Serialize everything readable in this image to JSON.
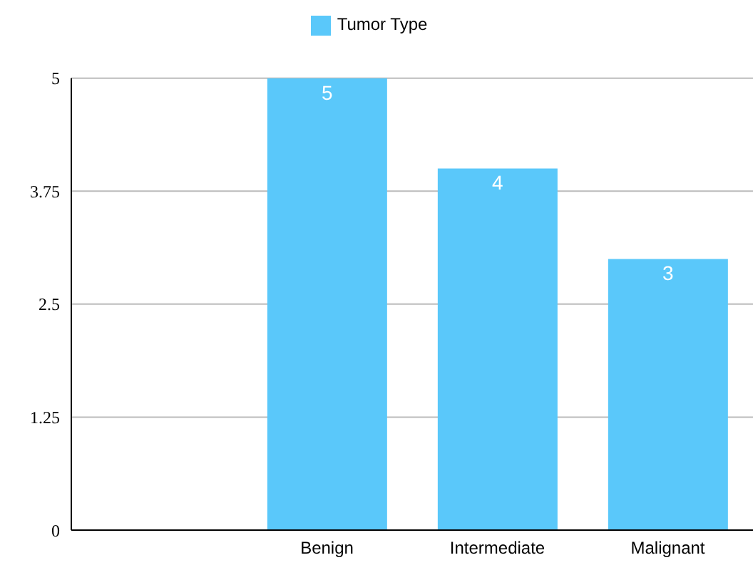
{
  "chart_data": {
    "type": "bar",
    "categories": [
      null,
      "Benign",
      "Intermediate",
      "Malignant"
    ],
    "series": [
      {
        "name": "Tumor Type",
        "color": "#5ac8fa",
        "values": [
          null,
          5,
          4,
          3
        ]
      }
    ],
    "ylim": [
      0,
      5
    ],
    "yticks": [
      0,
      {
        "value": 1.25,
        "label": "1.25"
      },
      {
        "value": 2.5,
        "label": "2.5"
      },
      {
        "value": 3.75,
        "label": "3.75"
      },
      5
    ],
    "grid": "y",
    "legend": "top",
    "data_labels": true
  }
}
